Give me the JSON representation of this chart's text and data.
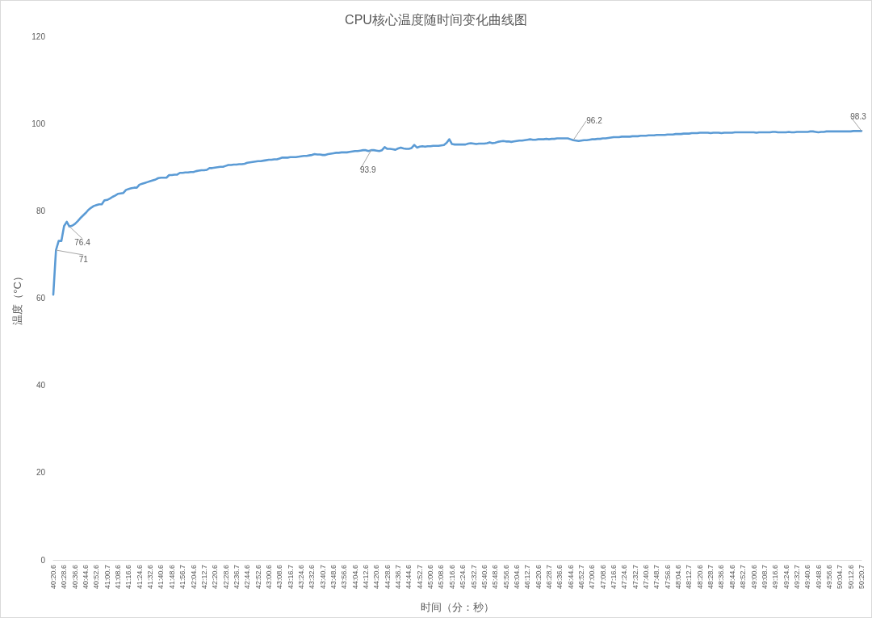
{
  "chart_data": {
    "type": "line",
    "title": "CPU核心温度随时间变化曲线图",
    "xlabel": "时间（分：秒）",
    "ylabel": "温度（°C）",
    "categories": [
      "40:20.6",
      null,
      null,
      null,
      "40:28.6",
      null,
      null,
      null,
      "40:36.6",
      null,
      null,
      null,
      "40:44.6",
      null,
      null,
      null,
      "40:52.6",
      null,
      null,
      null,
      "41:00.7",
      null,
      null,
      null,
      "41:08.6",
      null,
      null,
      null,
      "41:16.6",
      null,
      null,
      null,
      "41:24.6",
      null,
      null,
      null,
      "41:32.6",
      null,
      null,
      null,
      "41:40.6",
      null,
      null,
      null,
      "41:48.6",
      null,
      null,
      null,
      "41:56.7",
      null,
      null,
      null,
      "42:04.6",
      null,
      null,
      null,
      "42:12.7",
      null,
      null,
      null,
      "42:20.6",
      null,
      null,
      null,
      "42:28.6",
      null,
      null,
      null,
      "42:36.7",
      null,
      null,
      null,
      "42:44.6",
      null,
      null,
      null,
      "42:52.6",
      null,
      null,
      null,
      "43:00.6",
      null,
      null,
      null,
      "43:08.6",
      null,
      null,
      null,
      "43:16.7",
      null,
      null,
      null,
      "43:24.6",
      null,
      null,
      null,
      "43:32.6",
      null,
      null,
      null,
      "43:40.7",
      null,
      null,
      null,
      "43:48.6",
      null,
      null,
      null,
      "43:56.6",
      null,
      null,
      null,
      "44:04.6",
      null,
      null,
      null,
      "44:12.6",
      null,
      null,
      null,
      "44:20.6",
      null,
      null,
      null,
      "44:28.6",
      null,
      null,
      null,
      "44:36.7",
      null,
      null,
      null,
      "44:44.6",
      null,
      null,
      null,
      "44:52.7",
      null,
      null,
      null,
      "45:00.6",
      null,
      null,
      null,
      "45:08.6",
      null,
      null,
      null,
      "45:16.6",
      null,
      null,
      null,
      "45:24.6",
      null,
      null,
      null,
      "45:32.7",
      null,
      null,
      null,
      "45:40.6",
      null,
      null,
      null,
      "45:48.6",
      null,
      null,
      null,
      "45:56.6",
      null,
      null,
      null,
      "46:04.6",
      null,
      null,
      null,
      "46:12.7",
      null,
      null,
      null,
      "46:20.6",
      null,
      null,
      null,
      "46:28.7",
      null,
      null,
      null,
      "46:36.6",
      null,
      null,
      null,
      "46:44.6",
      null,
      null,
      null,
      "46:52.7",
      null,
      null,
      null,
      "47:00.6",
      null,
      null,
      null,
      "47:08.6",
      null,
      null,
      null,
      "47:16.6",
      null,
      null,
      null,
      "47:24.6",
      null,
      null,
      null,
      "47:32.7",
      null,
      null,
      null,
      "47:40.6",
      null,
      null,
      null,
      "47:48.7",
      null,
      null,
      null,
      "47:56.6",
      null,
      null,
      null,
      "48:04.6",
      null,
      null,
      null,
      "48:12.7",
      null,
      null,
      null,
      "48:20.6",
      null,
      null,
      null,
      "48:28.7",
      null,
      null,
      null,
      "48:36.6",
      null,
      null,
      null,
      "48:44.6",
      null,
      null,
      null,
      "48:52.7",
      null,
      null,
      null,
      "49:00.6",
      null,
      null,
      null,
      "49:08.7",
      null,
      null,
      null,
      "49:16.6",
      null,
      null,
      null,
      "49:24.6",
      null,
      null,
      null,
      "49:32.7",
      null,
      null,
      null,
      "49:40.6",
      null,
      null,
      null,
      "49:48.6",
      null,
      null,
      null,
      "49:56.6",
      null,
      null,
      null,
      "50:04.7",
      null,
      null,
      null,
      "50:12.6",
      null,
      null,
      null,
      "50:20.7"
    ],
    "values": [
      60.8,
      71,
      73.1,
      73.1,
      76.5,
      77.5,
      76.4,
      76.6,
      77.0,
      77.6,
      78.3,
      78.9,
      79.5,
      80.2,
      80.7,
      81.1,
      81.3,
      81.5,
      81.5,
      82.4,
      82.5,
      82.8,
      83.2,
      83.5,
      83.9,
      84.0,
      84.1,
      84.8,
      85.0,
      85.2,
      85.3,
      85.3,
      86.0,
      86.2,
      86.4,
      86.6,
      86.8,
      87.0,
      87.2,
      87.5,
      87.6,
      87.6,
      87.6,
      88.2,
      88.2,
      88.3,
      88.3,
      88.7,
      88.7,
      88.8,
      88.8,
      88.9,
      88.9,
      89.1,
      89.2,
      89.3,
      89.3,
      89.4,
      89.8,
      89.8,
      89.9,
      90.0,
      90.1,
      90.1,
      90.3,
      90.5,
      90.5,
      90.6,
      90.6,
      90.7,
      90.7,
      90.8,
      91.0,
      91.1,
      91.2,
      91.3,
      91.4,
      91.4,
      91.5,
      91.6,
      91.7,
      91.7,
      91.8,
      91.8,
      92.0,
      92.2,
      92.2,
      92.2,
      92.3,
      92.3,
      92.3,
      92.4,
      92.5,
      92.6,
      92.6,
      92.7,
      92.8,
      93.0,
      92.9,
      92.9,
      92.8,
      92.8,
      93.0,
      93.1,
      93.2,
      93.3,
      93.3,
      93.4,
      93.4,
      93.4,
      93.5,
      93.6,
      93.7,
      93.7,
      93.8,
      93.9,
      93.9,
      93.7,
      93.9,
      93.9,
      93.8,
      93.7,
      93.9,
      94.6,
      94.2,
      94.2,
      94.1,
      94.0,
      94.3,
      94.5,
      94.3,
      94.2,
      94.2,
      94.4,
      95.1,
      94.5,
      94.7,
      94.8,
      94.7,
      94.8,
      94.8,
      94.9,
      94.9,
      94.9,
      95.0,
      95.1,
      95.6,
      96.4,
      95.3,
      95.2,
      95.2,
      95.2,
      95.2,
      95.2,
      95.4,
      95.5,
      95.4,
      95.3,
      95.4,
      95.4,
      95.4,
      95.5,
      95.7,
      95.5,
      95.6,
      95.8,
      95.9,
      96.0,
      95.9,
      95.9,
      95.8,
      95.9,
      96.0,
      96.1,
      96.1,
      96.2,
      96.3,
      96.4,
      96.3,
      96.3,
      96.4,
      96.4,
      96.4,
      96.5,
      96.4,
      96.5,
      96.5,
      96.6,
      96.6,
      96.6,
      96.6,
      96.6,
      96.4,
      96.2,
      96.1,
      96.0,
      96.1,
      96.2,
      96.2,
      96.3,
      96.4,
      96.4,
      96.5,
      96.5,
      96.6,
      96.6,
      96.7,
      96.8,
      96.9,
      96.9,
      96.9,
      97.0,
      97.0,
      97.0,
      97.0,
      97.1,
      97.1,
      97.1,
      97.2,
      97.2,
      97.2,
      97.3,
      97.3,
      97.3,
      97.4,
      97.4,
      97.4,
      97.4,
      97.5,
      97.5,
      97.5,
      97.6,
      97.6,
      97.6,
      97.7,
      97.7,
      97.7,
      97.8,
      97.8,
      97.8,
      97.9,
      97.9,
      97.9,
      97.9,
      97.8,
      97.9,
      97.9,
      97.9,
      97.8,
      97.9,
      97.9,
      97.9,
      97.9,
      98.0,
      98.0,
      98.0,
      98.0,
      98.0,
      98.0,
      98.0,
      98.0,
      97.9,
      98.0,
      98.0,
      98.0,
      98.0,
      98.0,
      98.1,
      98.1,
      98.0,
      98.0,
      98.0,
      98.0,
      98.1,
      98.0,
      98.0,
      98.1,
      98.1,
      98.1,
      98.1,
      98.1,
      98.2,
      98.2,
      98.1,
      98.0,
      98.1,
      98.1,
      98.2,
      98.2,
      98.2,
      98.2,
      98.2,
      98.2,
      98.2,
      98.2,
      98.2,
      98.2,
      98.3,
      98.3,
      98.3,
      98.3
    ],
    "value_labels": [
      null,
      "71",
      null,
      null,
      null,
      null,
      "76.4",
      null,
      null,
      null,
      null,
      null,
      null,
      null,
      null,
      null,
      null,
      null,
      null,
      null,
      null,
      null,
      null,
      null,
      null,
      null,
      null,
      null,
      null,
      null,
      null,
      null,
      null,
      null,
      null,
      null,
      null,
      null,
      null,
      null,
      null,
      null,
      null,
      null,
      null,
      null,
      null,
      null,
      null,
      null,
      null,
      null,
      null,
      null,
      null,
      null,
      null,
      null,
      null,
      null,
      null,
      null,
      null,
      null,
      null,
      null,
      null,
      null,
      null,
      null,
      null,
      null,
      null,
      null,
      null,
      null,
      null,
      null,
      null,
      null,
      null,
      null,
      null,
      null,
      null,
      null,
      null,
      null,
      null,
      null,
      null,
      null,
      null,
      null,
      null,
      null,
      null,
      null,
      null,
      null,
      null,
      null,
      null,
      null,
      null,
      null,
      null,
      null,
      null,
      null,
      null,
      null,
      null,
      null,
      null,
      null,
      null,
      null,
      "93.9",
      null,
      null,
      null,
      null,
      null,
      null,
      null,
      null,
      null,
      null,
      null,
      null,
      null,
      null,
      null,
      null,
      null,
      null,
      null,
      null,
      null,
      null,
      null,
      null,
      null,
      null,
      null,
      null,
      null,
      null,
      null,
      null,
      null,
      null,
      null,
      null,
      null,
      null,
      null,
      null,
      null,
      null,
      null,
      null,
      null,
      null,
      null,
      null,
      null,
      null,
      null,
      null,
      null,
      null,
      null,
      null,
      null,
      null,
      null,
      null,
      null,
      null,
      null,
      null,
      null,
      null,
      null,
      null,
      null,
      null,
      null,
      null,
      null,
      null,
      "96.2",
      null,
      null,
      null,
      null,
      null,
      null,
      null,
      null,
      null,
      null,
      null,
      null,
      null,
      null,
      null,
      null,
      null,
      null,
      null,
      null,
      null,
      null,
      null,
      null,
      null,
      null,
      null,
      null,
      null,
      null,
      null,
      null,
      null,
      null,
      null,
      null,
      null,
      null,
      null,
      null,
      null,
      null,
      null,
      null,
      null,
      null,
      null,
      null,
      null,
      null,
      null,
      null,
      null,
      null,
      null,
      null,
      null,
      null,
      null,
      null,
      null,
      null,
      null,
      null,
      null,
      null,
      null,
      null,
      null,
      null,
      null,
      null,
      null,
      null,
      null,
      null,
      null,
      null,
      null,
      null,
      null,
      null,
      null,
      null,
      null,
      null,
      null,
      null,
      null,
      null,
      null,
      null,
      null,
      null,
      null,
      null,
      null,
      null,
      null,
      null,
      null,
      null,
      null,
      null,
      null,
      null,
      "98.3"
    ],
    "color": "#5b9bd5",
    "ylim": [
      0,
      120
    ],
    "yticks": [
      0,
      20,
      40,
      60,
      80,
      100,
      120
    ],
    "marker": "none"
  }
}
